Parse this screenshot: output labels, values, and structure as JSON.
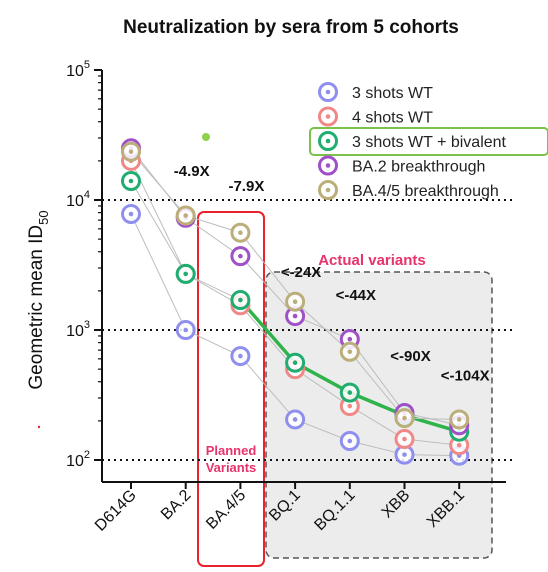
{
  "chart_data": {
    "type": "scatter",
    "title": "Neutralization by sera from 5 cohorts",
    "ylabel": "Geometric mean ID",
    "ylabel_sub": "50",
    "yscale": "log",
    "ylim": [
      100,
      100000
    ],
    "yticks": [
      {
        "value": 100,
        "base": "10",
        "exp": "2"
      },
      {
        "value": 1000,
        "base": "10",
        "exp": "3"
      },
      {
        "value": 10000,
        "base": "10",
        "exp": "4"
      },
      {
        "value": 100000,
        "base": "10",
        "exp": "5"
      }
    ],
    "gridlines_at": [
      100,
      1000,
      10000
    ],
    "categories": [
      "D614G",
      "BA.2",
      "BA.4/5",
      "BQ.1",
      "BQ.1.1",
      "XBB",
      "XBB.1"
    ],
    "legend_position": "top-right",
    "series": [
      {
        "name": "3 shots WT",
        "color": "#8f8ff0",
        "values": [
          7800,
          1000,
          630,
          205,
          140,
          110,
          108
        ]
      },
      {
        "name": "4 shots WT",
        "color": "#f08888",
        "values": [
          20000,
          2700,
          1550,
          500,
          260,
          145,
          130
        ]
      },
      {
        "name": "3 shots WT + bivalent",
        "color": "#1fae70",
        "values": [
          14000,
          2700,
          1700,
          560,
          330,
          220,
          165
        ],
        "highlight": true
      },
      {
        "name": "BA.2 breakthrough",
        "color": "#a050c8",
        "values": [
          25000,
          7300,
          3700,
          1280,
          850,
          230,
          185
        ]
      },
      {
        "name": "BA.4/5 breakthrough",
        "color": "#bcae7a",
        "values": [
          23500,
          7600,
          5600,
          1650,
          680,
          210,
          205
        ]
      }
    ],
    "fold_labels": [
      {
        "text": "-4.9X",
        "category": "BA.2"
      },
      {
        "text": "-7.9X",
        "category": "BA.4/5"
      },
      {
        "text": "<-24X",
        "category": "BQ.1"
      },
      {
        "text": "<-44X",
        "category": "BQ.1.1"
      },
      {
        "text": "<-90X",
        "category": "XBB"
      },
      {
        "text": "<-104X",
        "category": "XBB.1"
      }
    ],
    "annotations": {
      "actual_variants": "Actual variants",
      "planned_line1": "Planned",
      "planned_line2": "Variants"
    }
  }
}
